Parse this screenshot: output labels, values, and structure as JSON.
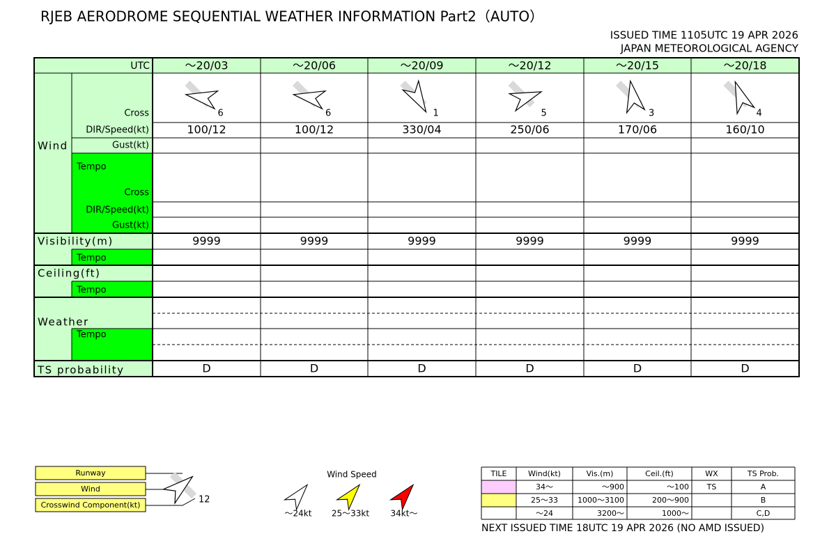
{
  "header": {
    "title": "RJEB AERODROME SEQUENTIAL WEATHER INFORMATION Part2（AUTO）",
    "issued": "ISSUED TIME 1105UTC 19 APR 2026",
    "agency": "JAPAN METEOROLOGICAL AGENCY"
  },
  "table": {
    "labels": {
      "utc": "UTC",
      "cross": "Cross",
      "dir_speed": "DIR/Speed(kt)",
      "gust": "Gust(kt)",
      "wind": "Wind",
      "tempo": "Tempo",
      "visibility": "Visibility(m)",
      "ceiling": "Ceiling(ft)",
      "weather": "Weather",
      "ts": "TS probability"
    },
    "columns": [
      {
        "time": "～20/03",
        "cross": 6,
        "wind": "100/12",
        "visibility": "9999",
        "ts": "D"
      },
      {
        "time": "～20/06",
        "cross": 6,
        "wind": "100/12",
        "visibility": "9999",
        "ts": "D"
      },
      {
        "time": "～20/09",
        "cross": 1,
        "wind": "330/04",
        "visibility": "9999",
        "ts": "D"
      },
      {
        "time": "～20/12",
        "cross": 5,
        "wind": "250/06",
        "visibility": "9999",
        "ts": "D"
      },
      {
        "time": "～20/15",
        "cross": 3,
        "wind": "170/06",
        "visibility": "9999",
        "ts": "D"
      },
      {
        "time": "～20/18",
        "cross": 4,
        "wind": "160/10",
        "visibility": "9999",
        "ts": "D"
      }
    ]
  },
  "legend": {
    "runway": "Runway",
    "wind": "Wind",
    "crosswind": "Crosswind Component(kt)",
    "sample_cross": 12,
    "speed_title": "Wind Speed",
    "speeds": [
      "～24kt",
      "25～33kt",
      "34kt～"
    ],
    "table": {
      "headers": [
        "TILE",
        "Wind(kt)",
        "Vis.(m)",
        "Ceil.(ft)",
        "WX",
        "TS Prob."
      ],
      "rows": [
        {
          "wind": "34～",
          "vis": "～900",
          "ceil": "～100",
          "wx": "TS",
          "ts": "A"
        },
        {
          "wind": "25～33",
          "vis": "1000～3100",
          "ceil": "200～900",
          "ts": "B"
        },
        {
          "wind": "～24",
          "vis": "3200～",
          "ceil": "1000～",
          "ts": "C,D"
        }
      ]
    }
  },
  "footer": "NEXT ISSUED TIME 18UTC 19 APR 2026 (NO AMD ISSUED)"
}
